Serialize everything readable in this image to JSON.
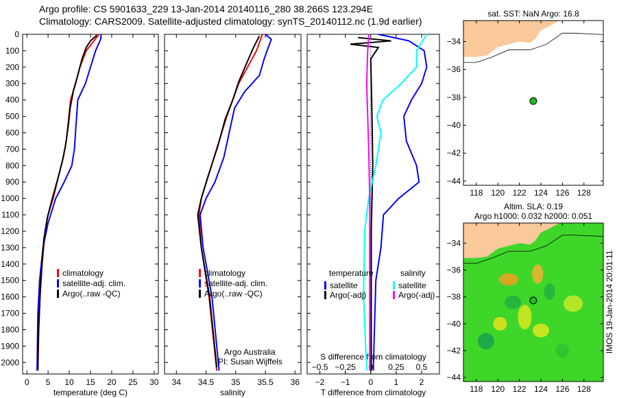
{
  "title_line1": "Argo profile: CS 5901633_229 13-Jan-2014 20140116_280 38.266S 123.294E",
  "title_line2": "Climatology: CARS2009. Satellite-adjusted climatology: synTS_20140112.nc (1.9d earlier)",
  "credit": "Argo Australia",
  "pi": "PI: Susan Wijffels",
  "stamp": "IMOS 19-Jan-2014 20:01:11",
  "colors": {
    "climatology": "#ff0000",
    "satellite": "#0000ff",
    "argo": "#000000",
    "sal_satellite": "#00ffff",
    "sal_argo": "#ff00ff",
    "land": "#f9c89b"
  },
  "chart_data": [
    {
      "type": "line",
      "xlabel": "temperature (deg C)",
      "xlim": [
        -1,
        31
      ],
      "xticks": [
        0,
        5,
        10,
        15,
        20,
        25,
        30
      ],
      "ylim": [
        2070,
        0
      ],
      "yticks": [
        0,
        100,
        200,
        300,
        400,
        500,
        600,
        700,
        800,
        900,
        1000,
        1100,
        1200,
        1300,
        1400,
        1500,
        1600,
        1700,
        1800,
        1900,
        2000
      ],
      "legend": [
        "climatology",
        "satellite-adj. clim.",
        "Argo(..raw -QC)"
      ],
      "series": [
        {
          "name": "climatology",
          "color": "#ff0000",
          "points": [
            [
              17,
              0
            ],
            [
              15.5,
              50
            ],
            [
              14,
              100
            ],
            [
              12.5,
              200
            ],
            [
              11.5,
              300
            ],
            [
              10.3,
              400
            ],
            [
              9.9,
              500
            ],
            [
              9.3,
              650
            ],
            [
              8.6,
              750
            ],
            [
              7.6,
              850
            ],
            [
              6.2,
              1000
            ],
            [
              5,
              1100
            ],
            [
              4.3,
              1200
            ],
            [
              3.6,
              1400
            ],
            [
              3.1,
              1600
            ],
            [
              2.8,
              1800
            ],
            [
              2.6,
              2050
            ]
          ]
        },
        {
          "name": "satellite-adj. clim.",
          "color": "#0000ff",
          "points": [
            [
              17.5,
              0
            ],
            [
              17.4,
              30
            ],
            [
              16.2,
              100
            ],
            [
              15,
              200
            ],
            [
              13.8,
              300
            ],
            [
              12,
              400
            ],
            [
              11.6,
              550
            ],
            [
              11.2,
              700
            ],
            [
              10.6,
              800
            ],
            [
              8.8,
              900
            ],
            [
              6.8,
              1000
            ],
            [
              5,
              1150
            ],
            [
              3.8,
              1300
            ],
            [
              3,
              1500
            ],
            [
              2.6,
              1700
            ],
            [
              2.4,
              2050
            ]
          ]
        },
        {
          "name": "Argo(..raw -QC)",
          "color": "#000000",
          "points": [
            [
              16.5,
              5
            ],
            [
              15,
              40
            ],
            [
              14,
              80
            ],
            [
              13,
              150
            ],
            [
              12,
              250
            ],
            [
              11,
              340
            ],
            [
              10.2,
              450
            ],
            [
              9.8,
              550
            ],
            [
              9.1,
              680
            ],
            [
              8.3,
              780
            ],
            [
              7.3,
              880
            ],
            [
              6,
              1000
            ],
            [
              4.8,
              1120
            ],
            [
              4,
              1250
            ],
            [
              3.4,
              1450
            ],
            [
              3,
              1650
            ],
            [
              2.7,
              1850
            ],
            [
              2.6,
              2040
            ]
          ]
        }
      ]
    },
    {
      "type": "line",
      "xlabel": "salinity",
      "xlim": [
        33.8,
        36.1
      ],
      "xticks": [
        34,
        34.5,
        35,
        35.5,
        36
      ],
      "ylim": [
        2070,
        0
      ],
      "legend": [
        "climatology",
        "satellite-adj. clim.",
        "Argo(..raw -QC)"
      ],
      "series": [
        {
          "name": "climatology",
          "color": "#ff0000",
          "points": [
            [
              35.45,
              0
            ],
            [
              35.35,
              100
            ],
            [
              35.2,
              200
            ],
            [
              35.05,
              300
            ],
            [
              34.95,
              400
            ],
            [
              34.85,
              500
            ],
            [
              34.72,
              650
            ],
            [
              34.55,
              850
            ],
            [
              34.42,
              1000
            ],
            [
              34.38,
              1100
            ],
            [
              34.42,
              1300
            ],
            [
              34.55,
              1600
            ],
            [
              34.68,
              2050
            ]
          ]
        },
        {
          "name": "satellite-adj. clim.",
          "color": "#0000ff",
          "points": [
            [
              35.5,
              0
            ],
            [
              35.6,
              30
            ],
            [
              35.55,
              80
            ],
            [
              35.48,
              150
            ],
            [
              35.4,
              250
            ],
            [
              35.15,
              350
            ],
            [
              34.98,
              450
            ],
            [
              34.92,
              550
            ],
            [
              34.8,
              750
            ],
            [
              34.65,
              900
            ],
            [
              34.5,
              1000
            ],
            [
              34.4,
              1100
            ],
            [
              34.45,
              1300
            ],
            [
              34.6,
              1600
            ],
            [
              34.72,
              2050
            ]
          ]
        },
        {
          "name": "Argo(..raw -QC)",
          "color": "#000000",
          "points": [
            [
              35.4,
              10
            ],
            [
              35.3,
              80
            ],
            [
              35.18,
              180
            ],
            [
              35.05,
              290
            ],
            [
              34.95,
              400
            ],
            [
              34.82,
              520
            ],
            [
              34.7,
              680
            ],
            [
              34.52,
              880
            ],
            [
              34.42,
              1000
            ],
            [
              34.36,
              1100
            ],
            [
              34.42,
              1300
            ],
            [
              34.56,
              1600
            ],
            [
              34.68,
              2030
            ]
          ]
        }
      ]
    },
    {
      "type": "line",
      "xlabel": "T difference from climatology",
      "x2label": "S difference from climatology",
      "xlim": [
        -2.5,
        2.7
      ],
      "xticks": [
        -2,
        -1,
        0,
        1,
        2
      ],
      "x2ticks": [
        -0.5,
        -0.25,
        0,
        0.25,
        0.5
      ],
      "x2lim": [
        -0.625,
        0.675
      ],
      "ylim": [
        2070,
        0
      ],
      "legend_t": {
        "title": "temperature",
        "items": [
          "satellite",
          "Argo(-adj)"
        ]
      },
      "legend_s": {
        "title": "salinity",
        "items": [
          "satellite",
          "Argo(-adj)"
        ]
      },
      "series": [
        {
          "name": "T satellite",
          "axis": "t",
          "color": "#0000ff",
          "points": [
            [
              0.3,
              0
            ],
            [
              1.5,
              40
            ],
            [
              2.1,
              100
            ],
            [
              2.2,
              200
            ],
            [
              2,
              300
            ],
            [
              1.6,
              400
            ],
            [
              1.3,
              500
            ],
            [
              1.4,
              650
            ],
            [
              1.8,
              800
            ],
            [
              1.9,
              900
            ],
            [
              1.1,
              1000
            ],
            [
              0.5,
              1100
            ],
            [
              0.4,
              1300
            ],
            [
              0.2,
              1500
            ],
            [
              0.1,
              2050
            ]
          ]
        },
        {
          "name": "T Argo(-adj)",
          "axis": "t",
          "color": "#000000",
          "points": [
            [
              -0.5,
              20
            ],
            [
              0.8,
              40
            ],
            [
              -0.8,
              60
            ],
            [
              0.3,
              80
            ],
            [
              0,
              150
            ],
            [
              0.05,
              500
            ],
            [
              0.08,
              800
            ],
            [
              0.02,
              1200
            ],
            [
              0.02,
              2050
            ]
          ]
        },
        {
          "name": "S satellite",
          "axis": "s",
          "color": "#00ffff",
          "points": [
            [
              0.55,
              0
            ],
            [
              0.45,
              100
            ],
            [
              0.45,
              200
            ],
            [
              0.3,
              300
            ],
            [
              0.12,
              400
            ],
            [
              0.06,
              500
            ],
            [
              0.1,
              600
            ],
            [
              0.05,
              800
            ],
            [
              -0.02,
              1000
            ],
            [
              -0.06,
              1200
            ],
            [
              -0.07,
              1600
            ],
            [
              -0.04,
              2050
            ]
          ]
        },
        {
          "name": "S Argo(-adj)",
          "axis": "s",
          "color": "#ff00ff",
          "points": [
            [
              -0.02,
              0
            ],
            [
              -0.03,
              100
            ],
            [
              -0.04,
              300
            ],
            [
              -0.03,
              500
            ],
            [
              -0.02,
              700
            ],
            [
              -0.01,
              1000
            ],
            [
              -0.01,
              2050
            ]
          ]
        }
      ]
    },
    {
      "type": "map",
      "title": "sat. SST: NaN Argo: 16.8",
      "xticks": [
        118,
        120,
        122,
        124,
        126,
        128
      ],
      "yticks": [
        -34,
        -36,
        -38,
        -40,
        -42,
        -44
      ],
      "marker": [
        123.294,
        -38.266
      ]
    },
    {
      "type": "heatmap",
      "title1": "Altim. SLA: 0.19",
      "title2": "Argo h1000: 0.032 h2000: 0.051",
      "xticks": [
        118,
        120,
        122,
        124,
        126,
        128
      ],
      "yticks": [
        -34,
        -36,
        -38,
        -40,
        -42,
        -44
      ],
      "marker": [
        123.294,
        -38.266
      ]
    }
  ]
}
